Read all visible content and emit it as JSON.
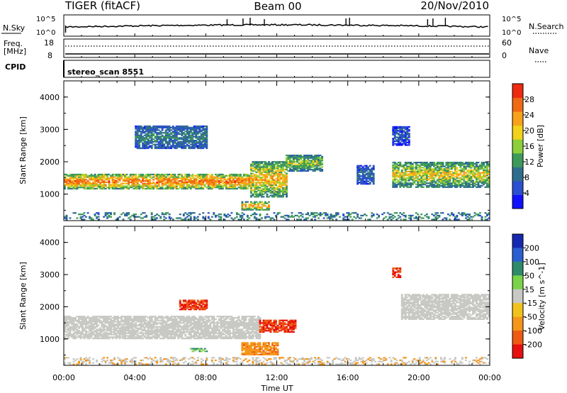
{
  "header": {
    "station": "TIGER (fitACF)",
    "beam": "Beam 00",
    "date": "20/Nov/2010"
  },
  "noise_panel": {
    "left_label": "N.Sky",
    "left_ticks": [
      "10^5",
      "10^0"
    ],
    "right_ticks": [
      "10^5",
      "10^0"
    ],
    "right_label": "N.Search"
  },
  "freq_panel": {
    "left_label_1": "Freq.",
    "left_label_2": "[MHz]",
    "left_ticks": [
      "18",
      "8"
    ],
    "right_ticks": [
      "60",
      "0"
    ],
    "right_label": "Nave"
  },
  "cpid_panel": {
    "label": "CPID",
    "program": "stereo_scan 8551"
  },
  "time_axis": {
    "label": "Time UT",
    "ticks": [
      "00:00",
      "04:00",
      "08:00",
      "12:00",
      "16:00",
      "20:00",
      "00:00"
    ]
  },
  "range_axis": {
    "label": "Slant Range [km]",
    "ticks": [
      "1000",
      "2000",
      "3000",
      "4000"
    ]
  },
  "power_colorbar": {
    "label": "Power [dB]",
    "ticks": [
      "4",
      "8",
      "12",
      "16",
      "20",
      "24",
      "28"
    ]
  },
  "velocity_colorbar": {
    "label": "Velocity [m s^-1]",
    "ticks": [
      "200",
      "100",
      "50",
      "15",
      "-15",
      "-50",
      "-100",
      "-200"
    ]
  },
  "chart_data": [
    {
      "type": "heatmap",
      "title": "Power",
      "xlabel": "Time UT",
      "ylabel": "Slant Range [km]",
      "xlim": [
        0,
        24
      ],
      "ylim": [
        180,
        4500
      ],
      "colorbar": {
        "label": "Power [dB]",
        "range": [
          0,
          32
        ]
      },
      "bands": [
        {
          "t": [
            0,
            10.5
          ],
          "r": [
            1150,
            1600
          ],
          "level": 26
        },
        {
          "t": [
            10.5,
            12.5
          ],
          "r": [
            900,
            2000
          ],
          "level": 22
        },
        {
          "t": [
            10,
            11.5
          ],
          "r": [
            500,
            750
          ],
          "level": 24
        },
        {
          "t": [
            12.5,
            14.5
          ],
          "r": [
            1700,
            2200
          ],
          "level": 18
        },
        {
          "t": [
            16.5,
            17.5
          ],
          "r": [
            1300,
            1900
          ],
          "level": 10
        },
        {
          "t": [
            18.5,
            24
          ],
          "r": [
            1200,
            2000
          ],
          "level": 20
        },
        {
          "t": [
            4,
            8
          ],
          "r": [
            2400,
            3100
          ],
          "level": 12
        },
        {
          "t": [
            18.5,
            19.5
          ],
          "r": [
            2500,
            3100
          ],
          "level": 8
        }
      ]
    },
    {
      "type": "heatmap",
      "title": "Velocity",
      "xlabel": "Time UT",
      "ylabel": "Slant Range [km]",
      "xlim": [
        0,
        24
      ],
      "ylim": [
        180,
        4500
      ],
      "colorbar": {
        "label": "Velocity [m s^-1]",
        "range": [
          -250,
          250
        ]
      },
      "bands": [
        {
          "t": [
            0,
            11
          ],
          "r": [
            1000,
            1700
          ],
          "level": 0
        },
        {
          "t": [
            6.5,
            8
          ],
          "r": [
            1900,
            2200
          ],
          "level": -200
        },
        {
          "t": [
            11,
            13
          ],
          "r": [
            1200,
            1600
          ],
          "level": -200
        },
        {
          "t": [
            10,
            12
          ],
          "r": [
            500,
            900
          ],
          "level": -80
        },
        {
          "t": [
            7,
            8
          ],
          "r": [
            600,
            700
          ],
          "level": 40
        },
        {
          "t": [
            18.5,
            19
          ],
          "r": [
            2900,
            3200
          ],
          "level": -200
        },
        {
          "t": [
            19,
            24
          ],
          "r": [
            1600,
            2400
          ],
          "level": 0
        }
      ]
    }
  ]
}
